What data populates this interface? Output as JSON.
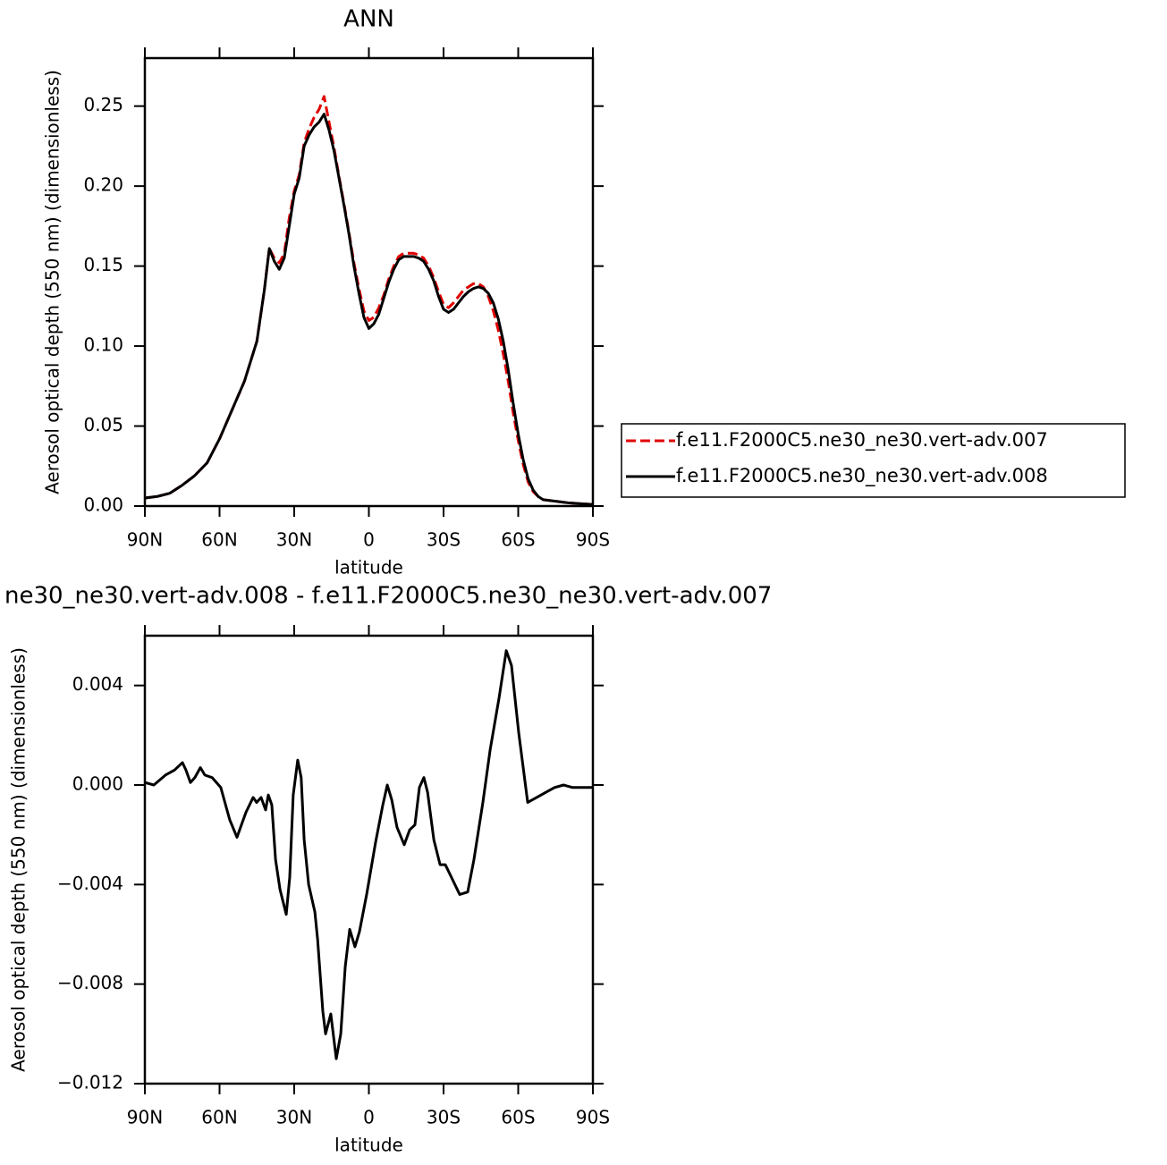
{
  "chart_data": [
    {
      "type": "line",
      "title": "ANN",
      "x_label": "latitude",
      "y_label": "Aerosol optical depth (550 nm) (dimensionless)",
      "legend": "outside right",
      "x": [
        90,
        85,
        80,
        75,
        70,
        65,
        60,
        55,
        50,
        45,
        42,
        40,
        38,
        36,
        34,
        32,
        30,
        28,
        26,
        24,
        22,
        20,
        18,
        16,
        14,
        12,
        10,
        8,
        6,
        4,
        2,
        0,
        -2,
        -4,
        -6,
        -8,
        -10,
        -12,
        -14,
        -16,
        -18,
        -20,
        -22,
        -24,
        -26,
        -28,
        -30,
        -32,
        -34,
        -36,
        -38,
        -40,
        -42,
        -44,
        -46,
        -48,
        -50,
        -52,
        -54,
        -56,
        -58,
        -60,
        -62,
        -64,
        -66,
        -68,
        -70,
        -75,
        -80,
        -85,
        -90
      ],
      "series": [
        {
          "name": "f.e11.F2000C5.ne30_ne30.vert-adv.007",
          "color": "#e00000",
          "dash": true,
          "values": [
            0.005,
            0.006,
            0.008,
            0.013,
            0.019,
            0.027,
            0.042,
            0.06,
            0.078,
            0.103,
            0.135,
            0.161,
            0.155,
            0.152,
            0.158,
            0.18,
            0.197,
            0.207,
            0.227,
            0.236,
            0.243,
            0.248,
            0.256,
            0.24,
            0.224,
            0.206,
            0.189,
            0.171,
            0.152,
            0.136,
            0.122,
            0.116,
            0.118,
            0.124,
            0.132,
            0.142,
            0.15,
            0.156,
            0.158,
            0.158,
            0.158,
            0.157,
            0.155,
            0.15,
            0.143,
            0.134,
            0.126,
            0.124,
            0.127,
            0.131,
            0.135,
            0.137,
            0.139,
            0.139,
            0.137,
            0.131,
            0.122,
            0.11,
            0.095,
            0.078,
            0.058,
            0.041,
            0.026,
            0.015,
            0.009,
            0.006,
            0.004,
            0.003,
            0.002,
            0.0015,
            0.001
          ]
        },
        {
          "name": "f.e11.F2000C5.ne30_ne30.vert-adv.008",
          "color": "#000000",
          "dash": false,
          "values": [
            0.005,
            0.006,
            0.008,
            0.013,
            0.019,
            0.027,
            0.042,
            0.06,
            0.078,
            0.103,
            0.135,
            0.161,
            0.153,
            0.148,
            0.155,
            0.175,
            0.195,
            0.205,
            0.225,
            0.232,
            0.237,
            0.24,
            0.245,
            0.235,
            0.222,
            0.205,
            0.188,
            0.17,
            0.15,
            0.133,
            0.118,
            0.111,
            0.114,
            0.12,
            0.13,
            0.14,
            0.148,
            0.154,
            0.156,
            0.156,
            0.156,
            0.155,
            0.153,
            0.148,
            0.141,
            0.131,
            0.123,
            0.121,
            0.123,
            0.127,
            0.131,
            0.134,
            0.136,
            0.137,
            0.136,
            0.133,
            0.127,
            0.117,
            0.103,
            0.085,
            0.064,
            0.045,
            0.029,
            0.017,
            0.01,
            0.006,
            0.004,
            0.003,
            0.002,
            0.0015,
            0.001
          ]
        }
      ],
      "xlim": [
        90,
        -90
      ],
      "xticks": [
        {
          "value": 90,
          "label": "90N"
        },
        {
          "value": 60,
          "label": "60N"
        },
        {
          "value": 30,
          "label": "30N"
        },
        0,
        {
          "value": -30,
          "label": "30S"
        },
        {
          "value": -60,
          "label": "60S"
        },
        {
          "value": -90,
          "label": "90S"
        }
      ],
      "ylim": [
        0,
        0.28
      ],
      "yticks": [
        {
          "value": 0,
          "label": "0.00"
        },
        {
          "value": 0.05,
          "label": "0.05"
        },
        {
          "value": 0.1,
          "label": "0.10"
        },
        {
          "value": 0.15,
          "label": "0.15"
        },
        {
          "value": 0.2,
          "label": "0.20"
        },
        {
          "value": 0.25,
          "label": "0.25"
        }
      ]
    },
    {
      "type": "line",
      "title": "ne30_ne30.vert-adv.008 - f.e11.F2000C5.ne30_ne30.vert-adv.007",
      "x_label": "latitude",
      "y_label": "Aerosol optical depth (550 nm) (dimensionless)",
      "color": "#000000",
      "x": [
        90,
        86.4,
        81.7,
        78.1,
        74.9,
        73.5,
        71.7,
        69.9,
        67.7,
        65.9,
        63,
        59.5,
        55.9,
        53,
        49.4,
        46.5,
        45.1,
        43.3,
        41.5,
        40.4,
        39,
        37.5,
        35.7,
        33.2,
        31.8,
        30.4,
        28.6,
        27.2,
        26,
        24.2,
        21.7,
        20.6,
        18.5,
        17.4,
        15.3,
        13.1,
        11.3,
        9.5,
        7.7,
        5.6,
        3.8,
        0.9,
        -2.7,
        -5.6,
        -7.4,
        -9.2,
        -11.3,
        -14.2,
        -16.4,
        -18.5,
        -20.3,
        -22.1,
        -23.6,
        -26.1,
        -28.6,
        -30.7,
        -33.6,
        -36.5,
        -39.7,
        -42.2,
        -45.8,
        -48.7,
        -52.3,
        -55.2,
        -57.3,
        -60.2,
        -63.8,
        -67.4,
        -71,
        -74.6,
        -78.2,
        -81.8,
        -90
      ],
      "values": [
        0.0001,
        0.0,
        0.0004,
        0.0006,
        0.0009,
        0.0006,
        0.0001,
        0.0003,
        0.0007,
        0.0004,
        0.0003,
        -0.0001,
        -0.0014,
        -0.0021,
        -0.0011,
        -0.0005,
        -0.0007,
        -0.0005,
        -0.001,
        -0.0004,
        -0.0008,
        -0.003,
        -0.0042,
        -0.0052,
        -0.0037,
        -0.0004,
        0.001,
        0.0003,
        -0.0022,
        -0.004,
        -0.0051,
        -0.0062,
        -0.0091,
        -0.01,
        -0.0092,
        -0.011,
        -0.01,
        -0.0073,
        -0.0058,
        -0.0065,
        -0.0059,
        -0.0044,
        -0.0023,
        -0.0008,
        0.0,
        -0.0006,
        -0.0017,
        -0.0024,
        -0.0018,
        -0.0016,
        -0.0001,
        0.0003,
        -0.0003,
        -0.0022,
        -0.0032,
        -0.0032,
        -0.0038,
        -0.0044,
        -0.0043,
        -0.003,
        -0.0007,
        0.0014,
        0.0035,
        0.0054,
        0.0048,
        0.0021,
        -0.0007,
        -0.0005,
        -0.0003,
        -0.0001,
        0.0,
        -0.0001,
        -0.0001
      ],
      "xlim": [
        90,
        -90
      ],
      "xticks": [
        {
          "value": 90,
          "label": "90N"
        },
        {
          "value": 60,
          "label": "60N"
        },
        {
          "value": 30,
          "label": "30N"
        },
        0,
        {
          "value": -30,
          "label": "30S"
        },
        {
          "value": -60,
          "label": "60S"
        },
        {
          "value": -90,
          "label": "90S"
        }
      ],
      "ylim": [
        -0.012,
        0.006
      ],
      "yticks": [
        {
          "value": -0.012,
          "label": "−0.012"
        },
        {
          "value": -0.008,
          "label": "−0.008"
        },
        {
          "value": -0.004,
          "label": "−0.004"
        },
        {
          "value": 0,
          "label": "0.000"
        },
        0.004
      ]
    }
  ]
}
